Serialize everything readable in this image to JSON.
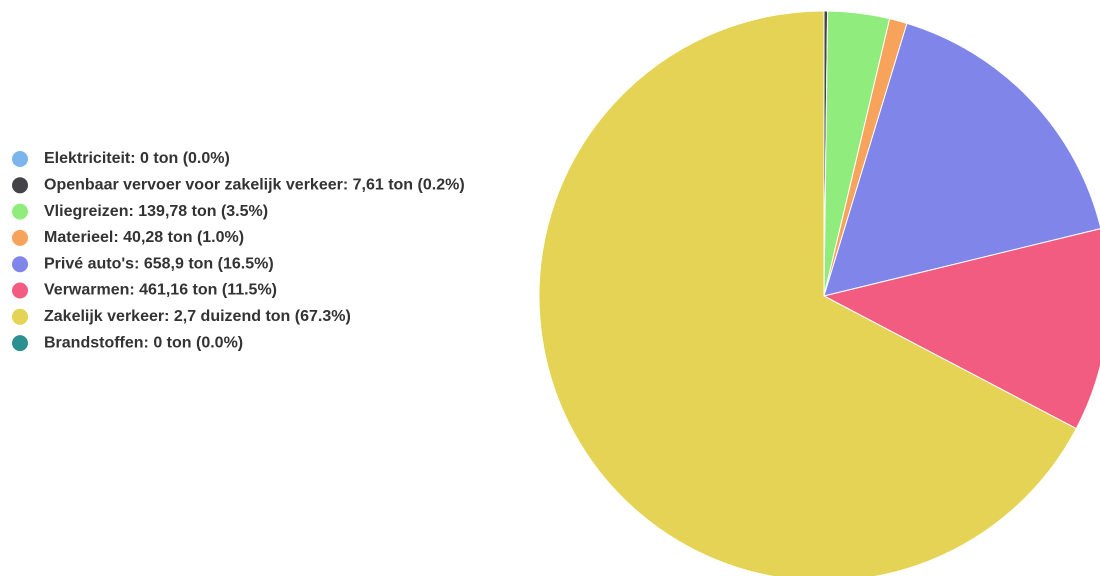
{
  "chart_data": {
    "type": "pie",
    "categories": [
      "Elektriciteit: 0 ton (0.0%)",
      "Openbaar vervoer voor zakelijk verkeer: 7,61 ton (0.2%)",
      "Vliegreizen: 139,78 ton (3.5%)",
      "Materieel: 40,28 ton (1.0%)",
      "Privé auto's: 658,9 ton (16.5%)",
      "Verwarmen: 461,16 ton (11.5%)",
      "Zakelijk verkeer: 2,7 duizend ton (67.3%)",
      "Brandstoffen: 0 ton (0.0%)"
    ],
    "values": [
      0,
      0.2,
      3.5,
      1.0,
      16.5,
      11.5,
      67.3,
      0
    ],
    "colors": [
      "#7cb5ec",
      "#434348",
      "#90ed7d",
      "#f7a35c",
      "#8085e9",
      "#f15c80",
      "#e4d354",
      "#2b908f"
    ],
    "legend": "left"
  }
}
